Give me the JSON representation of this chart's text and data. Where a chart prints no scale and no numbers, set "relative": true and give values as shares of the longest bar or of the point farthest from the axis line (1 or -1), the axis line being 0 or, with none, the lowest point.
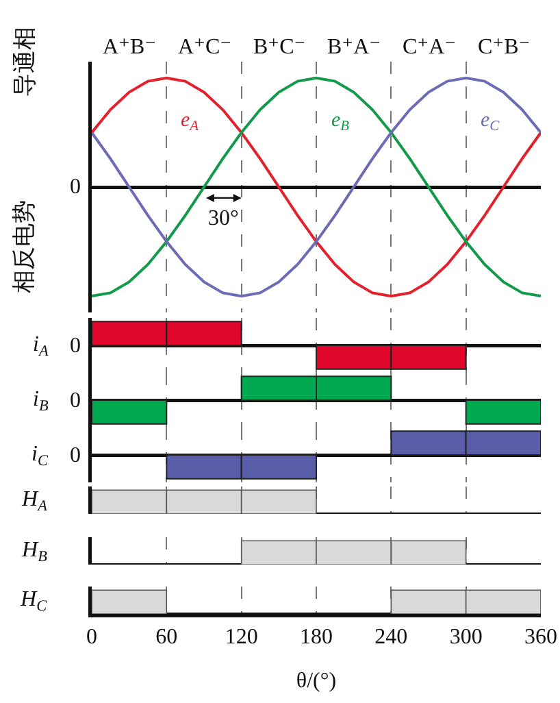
{
  "chart_data": [
    {
      "type": "line",
      "relative": true,
      "ylabel": "相反电势",
      "xlim": [
        0,
        360
      ],
      "xticks": [
        0,
        60,
        120,
        180,
        240,
        300,
        360
      ],
      "tick_labels": false,
      "grid": "x",
      "x": [
        0,
        15,
        30,
        45,
        60,
        75,
        90,
        105,
        120,
        135,
        150,
        165,
        180,
        195,
        210,
        225,
        240,
        255,
        270,
        285,
        300,
        315,
        330,
        345,
        360
      ],
      "series": [
        {
          "name": "e$_{A}$",
          "color": "#e3202c",
          "values": [
            0.5,
            0.71,
            0.87,
            0.97,
            1,
            0.97,
            0.87,
            0.71,
            0.5,
            0.26,
            0,
            -0.26,
            -0.5,
            -0.71,
            -0.87,
            -0.97,
            -1,
            -0.97,
            -0.87,
            -0.71,
            -0.5,
            -0.26,
            0,
            0.26,
            0.5
          ]
        },
        {
          "name": "e$_{B}$",
          "color": "#119a4a",
          "values": [
            -1,
            -0.97,
            -0.87,
            -0.71,
            -0.5,
            -0.26,
            0,
            0.26,
            0.5,
            0.71,
            0.87,
            0.97,
            1,
            0.97,
            0.87,
            0.71,
            0.5,
            0.26,
            0,
            -0.26,
            -0.5,
            -0.71,
            -0.87,
            -0.97,
            -1
          ]
        },
        {
          "name": "e$_{C}$",
          "color": "#6b6bb6",
          "values": [
            0.5,
            0.26,
            0,
            -0.26,
            -0.5,
            -0.71,
            -0.87,
            -0.97,
            -1,
            -0.97,
            -0.87,
            -0.71,
            -0.5,
            -0.26,
            0,
            0.26,
            0.5,
            0.71,
            0.87,
            0.97,
            1,
            0.97,
            0.87,
            0.71,
            0.5
          ]
        }
      ],
      "annotations": [
        "导通相",
        "A⁺B⁻",
        "A⁺C⁻",
        "B⁺C⁻",
        "B⁺A⁻",
        "C⁺A⁻",
        "C⁺B⁻",
        "0",
        "30°"
      ]
    },
    {
      "type": "bar",
      "relative": true,
      "ylabel": "i$_{A}$",
      "xlim": [
        0,
        360
      ],
      "xticks": [
        0,
        60,
        120,
        180,
        240,
        300,
        360
      ],
      "tick_labels": false,
      "grid": "x",
      "x": [
        30,
        90,
        210,
        270
      ],
      "series": [
        {
          "color": "#e0062c",
          "values": [
            1,
            1,
            -1,
            -1
          ]
        }
      ],
      "annotations": [
        "0"
      ]
    },
    {
      "type": "bar",
      "relative": true,
      "ylabel": "i$_{B}$",
      "xlim": [
        0,
        360
      ],
      "xticks": [
        0,
        60,
        120,
        180,
        240,
        300,
        360
      ],
      "tick_labels": false,
      "grid": "x",
      "x": [
        30,
        150,
        210,
        330
      ],
      "series": [
        {
          "color": "#00a84f",
          "values": [
            -1,
            1,
            1,
            -1
          ]
        }
      ],
      "annotations": [
        "0"
      ]
    },
    {
      "type": "bar",
      "relative": true,
      "ylabel": "i$_{C}$",
      "xlim": [
        0,
        360
      ],
      "xticks": [
        0,
        60,
        120,
        180,
        240,
        300,
        360
      ],
      "tick_labels": false,
      "grid": "x",
      "x": [
        90,
        150,
        270,
        330
      ],
      "series": [
        {
          "color": "#5a5ea8",
          "values": [
            -1,
            -1,
            1,
            1
          ]
        }
      ],
      "annotations": [
        "0"
      ]
    },
    {
      "type": "bar",
      "relative": true,
      "ylabel": "H$_{A}$",
      "xlim": [
        0,
        360
      ],
      "xticks": [
        0,
        60,
        120,
        180,
        240,
        300,
        360
      ],
      "tick_labels": false,
      "grid": "x",
      "x": [
        30,
        90,
        150
      ],
      "series": [
        {
          "color": "#d9d9d9",
          "values": [
            1,
            1,
            1
          ]
        }
      ]
    },
    {
      "type": "bar",
      "relative": true,
      "ylabel": "H$_{B}$",
      "xlim": [
        0,
        360
      ],
      "xticks": [
        0,
        60,
        120,
        180,
        240,
        300,
        360
      ],
      "tick_labels": false,
      "grid": "x",
      "x": [
        150,
        210,
        270
      ],
      "series": [
        {
          "color": "#d9d9d9",
          "values": [
            1,
            1,
            1
          ]
        }
      ]
    },
    {
      "type": "bar",
      "relative": true,
      "ylabel": "H$_{C}$",
      "xlabel": "θ/(°)",
      "xlim": [
        0,
        360
      ],
      "xticks": [
        0,
        60,
        120,
        180,
        240,
        300,
        360
      ],
      "tick_labels": "x",
      "grid": "x",
      "x": [
        30,
        270,
        330
      ],
      "series": [
        {
          "color": "#d9d9d9",
          "values": [
            1,
            1,
            1
          ]
        }
      ]
    }
  ]
}
